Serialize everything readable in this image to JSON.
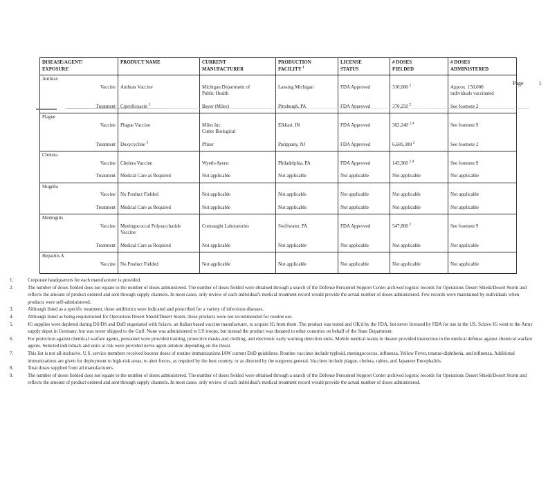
{
  "colors": {
    "paper": "#ffffff",
    "ink": "#1f1f1f"
  },
  "page": {
    "label": "Page",
    "number": "1"
  },
  "table": {
    "columns": [
      {
        "t": "DISEASE/AGENT/\nEXPOSURE"
      },
      {
        "t": "PRODUCT NAME"
      },
      {
        "t": "CURRENT\nMANUFACTURER"
      },
      {
        "t": "PRODUCTION\nFACILITY",
        "s": "1"
      },
      {
        "t": "LICENSE\nSTATUS"
      },
      {
        "t": "# DOSES\nFIELDED"
      },
      {
        "t": "# DOSES\nADMINISTERED"
      }
    ],
    "groups": [
      {
        "disease": "Anthrax",
        "rows": [
          {
            "role": "Vaccine",
            "cells": [
              {
                "t": "Anthrax Vaccine"
              },
              {
                "t": "Michigan Department of\nPublic Health"
              },
              {
                "t": "Lansing Michigan"
              },
              {
                "t": "FDA Approved"
              },
              {
                "t": "310,680",
                "s": "2"
              },
              {
                "t": "Approx. 150,000\nindividuals vaccinated"
              }
            ]
          },
          {
            "role": "Treatment",
            "cells": [
              {
                "t": "Ciprofloxacin",
                "s": "3"
              },
              {
                "t": "Bayer (Miles)"
              },
              {
                "t": "Pittsburgh, PA"
              },
              {
                "t": "FDA Approved"
              },
              {
                "t": "370,250",
                "s": "2"
              },
              {
                "t": "See footnote 2"
              }
            ]
          }
        ]
      },
      {
        "disease": "Plague",
        "rows": [
          {
            "role": "Vaccine",
            "cells": [
              {
                "t": "Plague Vaccine"
              },
              {
                "t": "Miles Inc.\nCutter Biological"
              },
              {
                "t": "Elkhart, IN"
              },
              {
                "t": "FDA Approved"
              },
              {
                "t": "302,240",
                "s": "2,4"
              },
              {
                "t": "See footnote 9"
              }
            ]
          },
          {
            "role": "Treatment",
            "cells": [
              {
                "t": "Doxycycline",
                "s": "3"
              },
              {
                "t": "Pfizer"
              },
              {
                "t": "Parippany, NJ"
              },
              {
                "t": "FDA Approved"
              },
              {
                "t": "6,681,300",
                "s": "2"
              },
              {
                "t": "See footnote 2"
              }
            ]
          }
        ]
      },
      {
        "disease": "Cholera",
        "rows": [
          {
            "role": "Vaccine",
            "cells": [
              {
                "t": "Cholera Vaccine"
              },
              {
                "t": "Wyeth-Ayerst"
              },
              {
                "t": "Philadelphia, PA"
              },
              {
                "t": "FDA Approved"
              },
              {
                "t": "143,960",
                "s": "2,4"
              },
              {
                "t": "See footnote 9"
              }
            ]
          },
          {
            "role": "Treatment",
            "cells": [
              {
                "t": "Medical Care as Required"
              },
              {
                "t": "Not applicable"
              },
              {
                "t": "Not applicable"
              },
              {
                "t": "Not applicable"
              },
              {
                "t": "Not applicable"
              },
              {
                "t": "Not applicable"
              }
            ]
          }
        ]
      },
      {
        "disease": "Shigella",
        "rows": [
          {
            "role": "Vaccine",
            "cells": [
              {
                "t": "No Product Fielded"
              },
              {
                "t": "Not applicable"
              },
              {
                "t": "Not applicable"
              },
              {
                "t": "Not applicable"
              },
              {
                "t": "Not applicable"
              },
              {
                "t": "Not applicable"
              }
            ]
          },
          {
            "role": "Treatment",
            "cells": [
              {
                "t": "Medical Care as Required"
              },
              {
                "t": "Not applicable"
              },
              {
                "t": "Not applicable"
              },
              {
                "t": "Not applicable"
              },
              {
                "t": "Not applicable"
              },
              {
                "t": "Not applicable"
              }
            ]
          }
        ]
      },
      {
        "disease": "Meningitis",
        "rows": [
          {
            "role": "Vaccine",
            "cells": [
              {
                "t": "Meningococcal Polysaccharide\nVaccine"
              },
              {
                "t": "Connaught Laboratories"
              },
              {
                "t": "Swiftwater, PA"
              },
              {
                "t": "FDA Approved"
              },
              {
                "t": "547,800",
                "s": "2"
              },
              {
                "t": "See footnote 9"
              }
            ]
          },
          {
            "role": "Treatment",
            "cells": [
              {
                "t": "Medical Care as Required"
              },
              {
                "t": "Not applicable"
              },
              {
                "t": "Not applicable"
              },
              {
                "t": "Not applicable"
              },
              {
                "t": "Not applicable"
              },
              {
                "t": "Not applicable"
              }
            ]
          }
        ]
      },
      {
        "disease": "Hepatitis A",
        "rows": [
          {
            "role": "Vaccine",
            "cells": [
              {
                "t": "No Product Fielded"
              },
              {
                "t": "Not applicable"
              },
              {
                "t": "Not applicable"
              },
              {
                "t": "Not applicable"
              },
              {
                "t": "Not applicable"
              },
              {
                "t": "Not applicable"
              }
            ]
          }
        ]
      }
    ]
  },
  "footnotes": [
    {
      "n": "1.",
      "t": "Corporate headquarters for each manufacturer is provided."
    },
    {
      "n": "2.",
      "t": "The number of doses fielded does not equate to the number of doses administered.  The number of doses fielded were obtained through a search of the Defense Personnel Support Center archived logistic records for Operations Desert Shield/Desert Storm and reflects the amount of product ordered and sent through supply channels.  In most cases, only review of each individual's medical treatment record would provide the actual number of doses administered.  Few records were maintained by individuals when products were self-administered."
    },
    {
      "n": "3.",
      "t": "Although listed as a specific treatment, these antibiotics were indicated and prescribed for a variety of infectious diseases."
    },
    {
      "n": "4.",
      "t": "Although listed as being requisitioned for Operations Desert Shield/Desert Storm, these products were not recommended for routine use."
    },
    {
      "n": "5.",
      "t": "IG supplies were depleted during DS/DS and DoD negotiated with Sclavo, an Italian based vaccine manufacturer, to acquire IG from them.  The product was tested and OK'd by the FDA, but never licensed by FDA for use in the US.  Sclavo IG went to the Army supply depot in Germany, but was never shipped to the Gulf.  None was administered to US troops, but instead the product was donated to other countries on behalf of the State Department."
    },
    {
      "n": "6.",
      "t": "For protection against chemical warfare agents, personnel were provided training, protective masks and clothing, and electronic early warning detection units.  Mobile medical teams in theater provided instruction in the medical defense against chemical warfare agents.  Selected individuals and units at risk were provided nerve agent antidote depending on the threat."
    },
    {
      "n": "7.",
      "t": "This list is not all-inclusive.  U.S. service members received booster doses of routine immunizations IAW current DoD guidelines.  Routine vaccines include typhoid, meningococcus, influenza, Yellow Fever, tetanus-diphtheria, and influenza.  Additional immunizations are given for deployment to high-risk areas, to alert forces, as required by the host country, or as directed by the surgeons general.  Vaccines include plague, cholera, rabies, and Japanese Encephalitis."
    },
    {
      "n": "8.",
      "t": "Total doses supplied from all manufacturers."
    },
    {
      "n": "9.",
      "t": "The number of doses fielded does not equate to the number of doses administered.  The number of doses fielded were obtained through a search of the Defense Personnel Support Center archived logistic records for Operations Desert Shield/Desert Storm and reflects the amount of product ordered and sent through supply channels.  In most cases, only review of each individual's medical treatment record would provide the actual number of doses administered."
    }
  ]
}
